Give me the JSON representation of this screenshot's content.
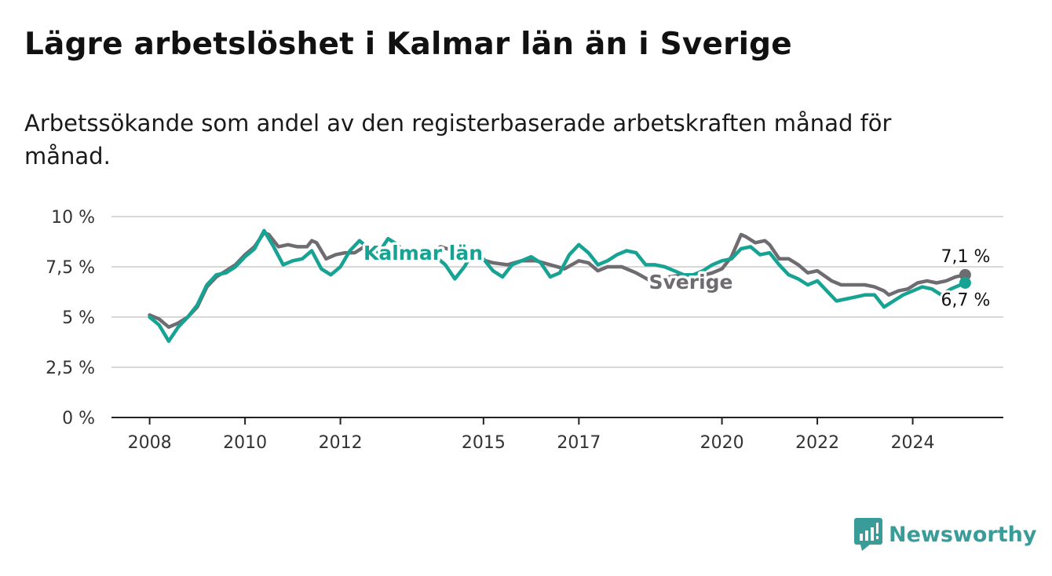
{
  "chart_data": {
    "type": "line",
    "title": "Lägre arbetslöshet i Kalmar län än i Sverige",
    "subtitle": "Arbetssökande som andel av den registerbaserade arbetskraften månad för månad.",
    "y_ticks": [
      "0 %",
      "2,5 %",
      "5 %",
      "7,5 %",
      "10 %"
    ],
    "x_ticks": [
      "2008",
      "2010",
      "2012",
      "2015",
      "2017",
      "2020",
      "2022",
      "2024"
    ],
    "ylim": [
      0,
      10
    ],
    "xlim": [
      2007.2,
      2025.9
    ],
    "grid": true,
    "series": [
      {
        "name": "Sverige",
        "color": "#6e6c70",
        "end_label": "7,1 %",
        "points": [
          [
            2008.0,
            5.1
          ],
          [
            2008.2,
            4.9
          ],
          [
            2008.4,
            4.5
          ],
          [
            2008.6,
            4.7
          ],
          [
            2008.8,
            5.0
          ],
          [
            2009.0,
            5.5
          ],
          [
            2009.2,
            6.5
          ],
          [
            2009.4,
            7.0
          ],
          [
            2009.6,
            7.3
          ],
          [
            2009.8,
            7.6
          ],
          [
            2010.0,
            8.1
          ],
          [
            2010.2,
            8.5
          ],
          [
            2010.4,
            9.2
          ],
          [
            2010.5,
            9.1
          ],
          [
            2010.7,
            8.5
          ],
          [
            2010.9,
            8.6
          ],
          [
            2011.1,
            8.5
          ],
          [
            2011.3,
            8.5
          ],
          [
            2011.4,
            8.8
          ],
          [
            2011.5,
            8.7
          ],
          [
            2011.7,
            7.9
          ],
          [
            2011.9,
            8.1
          ],
          [
            2012.1,
            8.2
          ],
          [
            2012.3,
            8.2
          ],
          [
            2012.5,
            8.5
          ],
          [
            2012.7,
            8.2
          ],
          [
            2013.0,
            8.1
          ],
          [
            2013.3,
            8.4
          ],
          [
            2013.5,
            8.3
          ],
          [
            2013.8,
            8.0
          ],
          [
            2014.1,
            8.5
          ],
          [
            2014.5,
            8.2
          ],
          [
            2014.9,
            7.9
          ],
          [
            2015.2,
            7.7
          ],
          [
            2015.5,
            7.6
          ],
          [
            2015.8,
            7.8
          ],
          [
            2016.1,
            7.8
          ],
          [
            2016.4,
            7.6
          ],
          [
            2016.7,
            7.4
          ],
          [
            2017.0,
            7.8
          ],
          [
            2017.2,
            7.7
          ],
          [
            2017.4,
            7.3
          ],
          [
            2017.6,
            7.5
          ],
          [
            2017.9,
            7.5
          ],
          [
            2018.2,
            7.2
          ],
          [
            2018.5,
            6.8
          ],
          [
            2018.9,
            7.0
          ],
          [
            2019.2,
            7.1
          ],
          [
            2019.5,
            7.0
          ],
          [
            2019.8,
            7.2
          ],
          [
            2020.0,
            7.4
          ],
          [
            2020.2,
            8.0
          ],
          [
            2020.4,
            9.1
          ],
          [
            2020.5,
            9.0
          ],
          [
            2020.7,
            8.7
          ],
          [
            2020.9,
            8.8
          ],
          [
            2021.0,
            8.6
          ],
          [
            2021.2,
            7.9
          ],
          [
            2021.4,
            7.9
          ],
          [
            2021.6,
            7.6
          ],
          [
            2021.8,
            7.2
          ],
          [
            2022.0,
            7.3
          ],
          [
            2022.3,
            6.8
          ],
          [
            2022.5,
            6.6
          ],
          [
            2022.8,
            6.6
          ],
          [
            2023.0,
            6.6
          ],
          [
            2023.2,
            6.5
          ],
          [
            2023.4,
            6.3
          ],
          [
            2023.5,
            6.1
          ],
          [
            2023.7,
            6.3
          ],
          [
            2023.9,
            6.4
          ],
          [
            2024.1,
            6.7
          ],
          [
            2024.3,
            6.8
          ],
          [
            2024.5,
            6.7
          ],
          [
            2024.7,
            6.8
          ],
          [
            2024.9,
            7.0
          ],
          [
            2025.1,
            7.1
          ]
        ]
      },
      {
        "name": "Kalmar län",
        "color": "#17a394",
        "end_label": "6,7 %",
        "points": [
          [
            2008.0,
            5.0
          ],
          [
            2008.2,
            4.6
          ],
          [
            2008.4,
            3.8
          ],
          [
            2008.6,
            4.5
          ],
          [
            2008.8,
            5.0
          ],
          [
            2009.0,
            5.6
          ],
          [
            2009.2,
            6.6
          ],
          [
            2009.4,
            7.1
          ],
          [
            2009.6,
            7.2
          ],
          [
            2009.8,
            7.5
          ],
          [
            2010.0,
            8.0
          ],
          [
            2010.2,
            8.4
          ],
          [
            2010.4,
            9.3
          ],
          [
            2010.6,
            8.5
          ],
          [
            2010.8,
            7.6
          ],
          [
            2011.0,
            7.8
          ],
          [
            2011.2,
            7.9
          ],
          [
            2011.4,
            8.3
          ],
          [
            2011.6,
            7.4
          ],
          [
            2011.8,
            7.1
          ],
          [
            2012.0,
            7.5
          ],
          [
            2012.2,
            8.3
          ],
          [
            2012.4,
            8.8
          ],
          [
            2012.6,
            8.4
          ],
          [
            2012.8,
            8.2
          ],
          [
            2013.0,
            8.9
          ],
          [
            2013.2,
            8.6
          ],
          [
            2013.4,
            8.0
          ],
          [
            2013.6,
            8.1
          ],
          [
            2013.8,
            8.3
          ],
          [
            2014.0,
            8.0
          ],
          [
            2014.2,
            7.6
          ],
          [
            2014.4,
            6.9
          ],
          [
            2014.6,
            7.5
          ],
          [
            2014.8,
            8.3
          ],
          [
            2015.0,
            7.9
          ],
          [
            2015.2,
            7.3
          ],
          [
            2015.4,
            7.0
          ],
          [
            2015.6,
            7.6
          ],
          [
            2015.8,
            7.8
          ],
          [
            2016.0,
            8.0
          ],
          [
            2016.2,
            7.7
          ],
          [
            2016.4,
            7.0
          ],
          [
            2016.6,
            7.2
          ],
          [
            2016.8,
            8.1
          ],
          [
            2017.0,
            8.6
          ],
          [
            2017.2,
            8.2
          ],
          [
            2017.4,
            7.6
          ],
          [
            2017.6,
            7.8
          ],
          [
            2017.8,
            8.1
          ],
          [
            2018.0,
            8.3
          ],
          [
            2018.2,
            8.2
          ],
          [
            2018.4,
            7.6
          ],
          [
            2018.6,
            7.6
          ],
          [
            2018.8,
            7.5
          ],
          [
            2019.0,
            7.3
          ],
          [
            2019.2,
            7.1
          ],
          [
            2019.4,
            7.1
          ],
          [
            2019.6,
            7.3
          ],
          [
            2019.8,
            7.6
          ],
          [
            2020.0,
            7.8
          ],
          [
            2020.2,
            7.9
          ],
          [
            2020.4,
            8.4
          ],
          [
            2020.6,
            8.5
          ],
          [
            2020.8,
            8.1
          ],
          [
            2021.0,
            8.2
          ],
          [
            2021.2,
            7.6
          ],
          [
            2021.4,
            7.1
          ],
          [
            2021.6,
            6.9
          ],
          [
            2021.8,
            6.6
          ],
          [
            2022.0,
            6.8
          ],
          [
            2022.2,
            6.3
          ],
          [
            2022.4,
            5.8
          ],
          [
            2022.6,
            5.9
          ],
          [
            2022.8,
            6.0
          ],
          [
            2023.0,
            6.1
          ],
          [
            2023.2,
            6.1
          ],
          [
            2023.4,
            5.5
          ],
          [
            2023.6,
            5.8
          ],
          [
            2023.8,
            6.1
          ],
          [
            2024.0,
            6.3
          ],
          [
            2024.2,
            6.5
          ],
          [
            2024.4,
            6.4
          ],
          [
            2024.6,
            6.1
          ],
          [
            2024.8,
            6.4
          ],
          [
            2025.1,
            6.7
          ]
        ]
      }
    ]
  },
  "brand": {
    "name": "Newsworthy",
    "color": "#3a9c98"
  }
}
